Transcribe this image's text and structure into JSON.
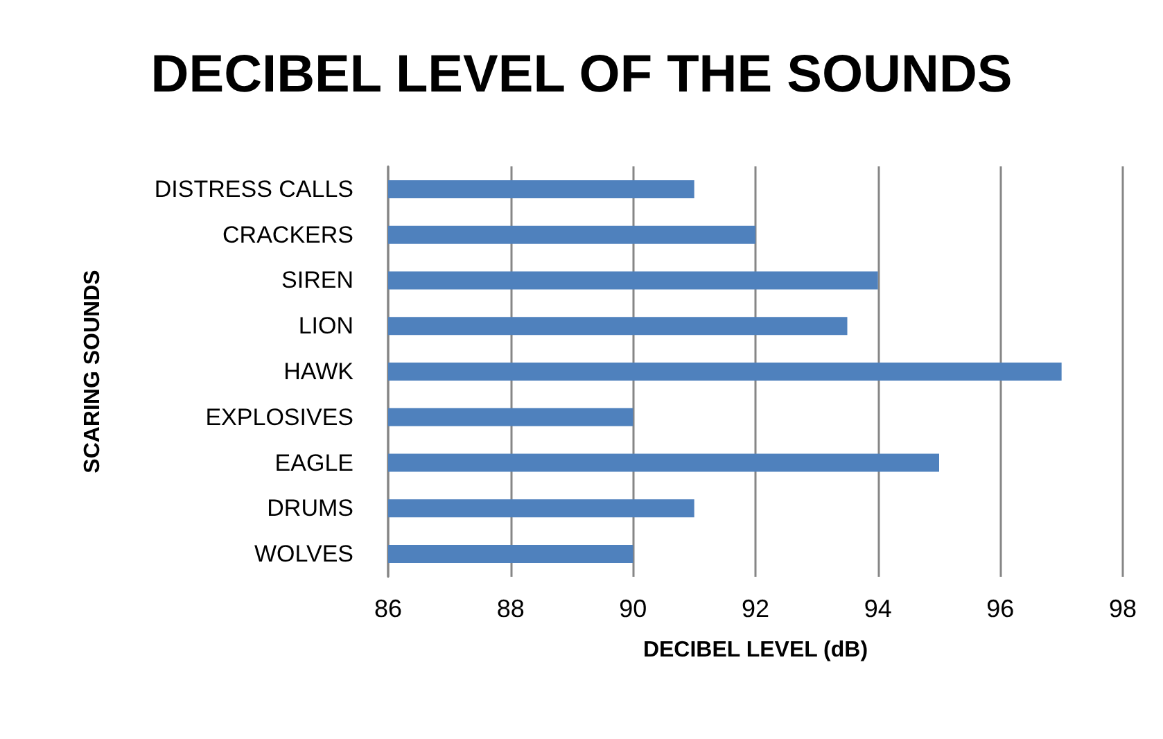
{
  "chart_data": {
    "type": "bar",
    "orientation": "horizontal",
    "title": "DECIBEL LEVEL OF THE SOUNDS",
    "xlabel": "DECIBEL LEVEL (dB)",
    "ylabel": "SCARING SOUNDS",
    "categories": [
      "DISTRESS CALLS",
      "CRACKERS",
      "SIREN",
      "LION",
      "HAWK",
      "EXPLOSIVES",
      "EAGLE",
      "DRUMS",
      "WOLVES"
    ],
    "values": [
      91,
      92,
      94,
      93.5,
      97,
      90,
      95,
      91,
      90
    ],
    "color": "#4f81bd",
    "xlim": [
      86,
      98
    ],
    "xticks": [
      86,
      88,
      90,
      92,
      94,
      96,
      98
    ],
    "grid": "x"
  }
}
